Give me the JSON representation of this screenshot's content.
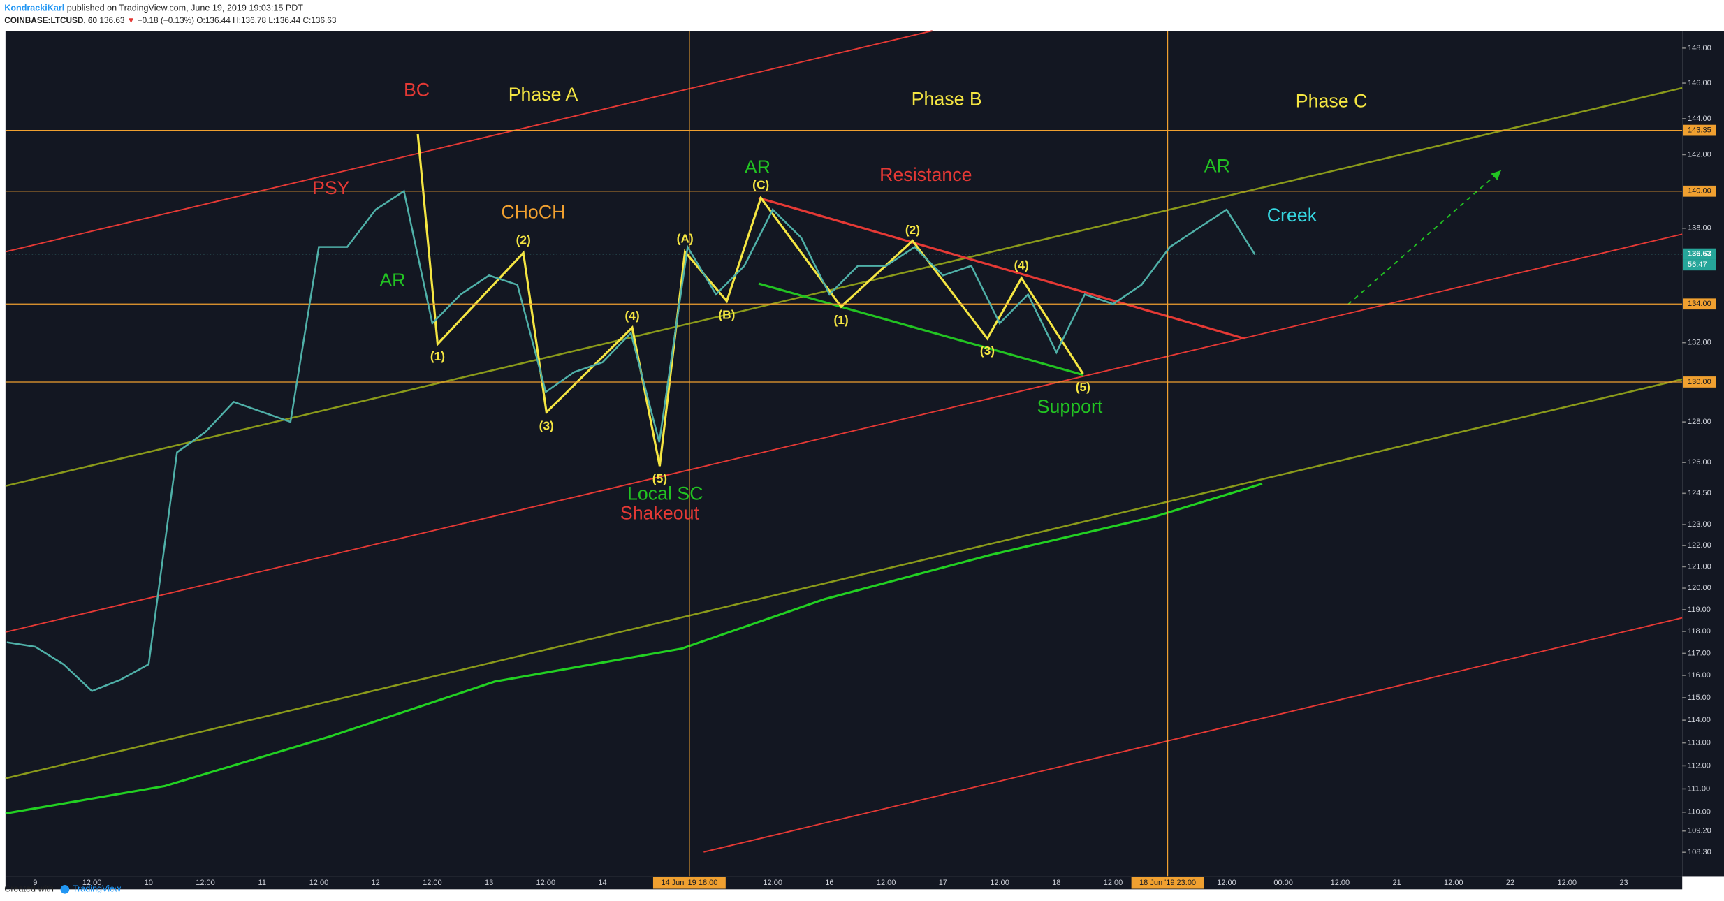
{
  "header": {
    "author": "KondrackiKarl",
    "published": "published on TradingView.com, June 19, 2019 19:03:15 PDT",
    "symbol": "COINBASE:LTCUSD, 60",
    "last": "136.63",
    "arrow": "▼",
    "change": "−0.18 (−0.13%)",
    "ohlc": "O:136.44 H:136.78 L:136.44 C:136.63"
  },
  "footer": {
    "created": "Created with",
    "brand": "TradingView"
  },
  "chart_data": {
    "type": "line",
    "log_scale": true,
    "categories": [
      null,
      "9",
      null,
      "12:00",
      null,
      "10",
      null,
      "12:00",
      null,
      "11",
      null,
      "12:00",
      null,
      "12",
      null,
      "12:00",
      null,
      "13",
      null,
      "12:00",
      null,
      "14",
      null,
      null,
      null,
      null,
      null,
      "12:00",
      null,
      "16",
      null,
      "12:00",
      null,
      "17",
      null,
      "12:00",
      null,
      "18",
      null,
      "12:00",
      null,
      null,
      null,
      "12:00",
      null,
      "00:00",
      null,
      "12:00",
      null,
      "21",
      null,
      "12:00",
      null,
      "22",
      null,
      "12:00",
      null,
      "23",
      null,
      null
    ],
    "color": "#4fb0a8",
    "values": [
      117.5,
      117.3,
      116.5,
      115.3,
      115.8,
      116.5,
      126.5,
      127.5,
      129,
      128.5,
      128,
      137,
      137,
      139,
      140,
      133,
      134.5,
      135.5,
      135,
      129.5,
      130.5,
      131,
      132.5,
      127,
      137,
      134.5,
      136,
      139,
      137.5,
      134.5,
      136,
      136,
      137,
      135.5,
      136,
      133,
      134.5,
      131.5,
      134.5,
      134,
      135,
      137,
      138,
      139,
      136.6,
      null,
      null,
      null,
      null,
      null,
      null,
      null,
      null,
      null,
      null,
      null,
      null,
      null,
      null,
      null
    ],
    "ylim": [
      107.3,
      149
    ],
    "yticks": [
      {
        "value": 148,
        "label": "148.00"
      },
      {
        "value": 146,
        "label": "146.00"
      },
      {
        "value": 144,
        "label": "144.00"
      },
      {
        "value": 142,
        "label": "142.00"
      },
      {
        "value": 138,
        "label": "138.00"
      },
      {
        "value": 132,
        "label": "132.00"
      },
      {
        "value": 128,
        "label": "128.00"
      },
      {
        "value": 126,
        "label": "126.00"
      },
      {
        "value": 124.5,
        "label": "124.50"
      },
      {
        "value": 123,
        "label": "123.00"
      },
      {
        "value": 122,
        "label": "122.00"
      },
      {
        "value": 121,
        "label": "121.00"
      },
      {
        "value": 120,
        "label": "120.00"
      },
      {
        "value": 119,
        "label": "119.00"
      },
      {
        "value": 118,
        "label": "118.00"
      },
      {
        "value": 117,
        "label": "117.00"
      },
      {
        "value": 116,
        "label": "116.00"
      },
      {
        "value": 115,
        "label": "115.00"
      },
      {
        "value": 114,
        "label": "114.00"
      },
      {
        "value": 113,
        "label": "113.00"
      },
      {
        "value": 112,
        "label": "112.00"
      },
      {
        "value": 111,
        "label": "111.00"
      },
      {
        "value": 110,
        "label": "110.00"
      },
      {
        "value": 109.2,
        "label": "109.20"
      },
      {
        "value": 108.3,
        "label": "108.30"
      }
    ],
    "levels": [
      {
        "value": 143.35,
        "label": "143.35"
      },
      {
        "value": 140,
        "label": "140.00"
      },
      {
        "value": 134,
        "label": "134.00"
      },
      {
        "value": 130,
        "label": "130.00"
      }
    ],
    "price_label": {
      "value": 136.63,
      "label": "136.63"
    },
    "countdown": "56:47",
    "time_markers": [
      "14 Jun '19  18:00",
      "18 Jun '19  23:00"
    ],
    "annotations": [
      {
        "text": "BC",
        "color": "#e53935"
      },
      {
        "text": "Phase A",
        "color": "#f5e642"
      },
      {
        "text": "Phase B",
        "color": "#f5e642"
      },
      {
        "text": "Phase C",
        "color": "#f5e642"
      },
      {
        "text": "PSY",
        "color": "#e53935"
      },
      {
        "text": "CHoCH",
        "color": "#f0a030"
      },
      {
        "text": "AR",
        "color": "#22c322"
      },
      {
        "text": "AR",
        "color": "#22c322"
      },
      {
        "text": "Resistance",
        "color": "#e53935"
      },
      {
        "text": "AR",
        "color": "#22c322"
      },
      {
        "text": "Creek",
        "color": "#36d6e0"
      },
      {
        "text": "Local SC",
        "color": "#22c322"
      },
      {
        "text": "Shakeout",
        "color": "#e53935"
      },
      {
        "text": "Support",
        "color": "#22c322"
      }
    ],
    "wave_labels": [
      "(1)",
      "(2)",
      "(3)",
      "(4)",
      "(5)",
      "(A)",
      "(B)",
      "(C)",
      "(1)",
      "(2)",
      "(3)",
      "(4)",
      "(5)"
    ]
  }
}
